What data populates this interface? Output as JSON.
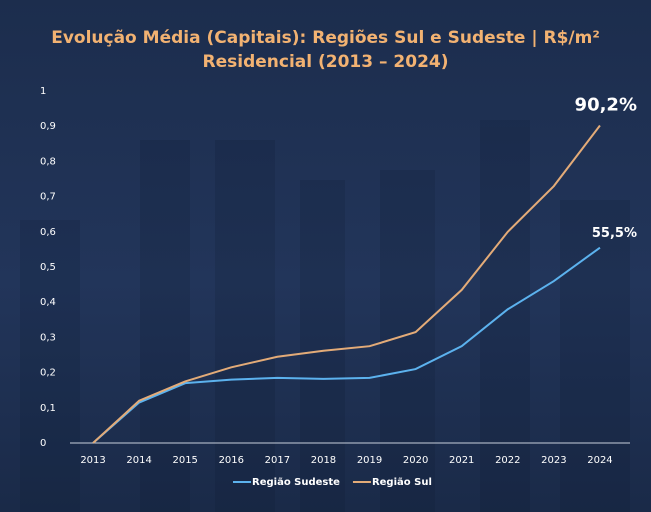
{
  "chart_data": {
    "type": "line",
    "title": "Evolução Média (Capitais): Regiões Sul e Sudeste | R$/m² Residencial (2013 – 2024)",
    "categories": [
      "2013",
      "2014",
      "2015",
      "2016",
      "2017",
      "2018",
      "2019",
      "2020",
      "2021",
      "2022",
      "2023",
      "2024"
    ],
    "series": [
      {
        "name": "Região Sudeste",
        "color": "#5cb2ee",
        "values": [
          0,
          0.115,
          0.17,
          0.18,
          0.185,
          0.182,
          0.185,
          0.21,
          0.275,
          0.38,
          0.46,
          0.555
        ],
        "value_labels": [
          null,
          null,
          null,
          null,
          null,
          null,
          null,
          null,
          null,
          null,
          null,
          "55,5%"
        ]
      },
      {
        "name": "Região Sul",
        "color": "#e3ab78",
        "values": [
          0,
          0.12,
          0.175,
          0.215,
          0.245,
          0.262,
          0.275,
          0.315,
          0.435,
          0.6,
          0.73,
          0.902
        ],
        "value_labels": [
          null,
          null,
          null,
          null,
          null,
          null,
          null,
          null,
          null,
          null,
          null,
          "90,2%"
        ]
      }
    ],
    "ylim": [
      0,
      1
    ],
    "yticks": [
      0,
      {
        "value": 0.1,
        "label": "0,1"
      },
      {
        "value": 0.2,
        "label": "0,2"
      },
      {
        "value": 0.3,
        "label": "0,3"
      },
      {
        "value": 0.4,
        "label": "0,4"
      },
      {
        "value": 0.5,
        "label": "0,5"
      },
      {
        "value": 0.6,
        "label": "0,6"
      },
      {
        "value": 0.7,
        "label": "0,7"
      },
      {
        "value": 0.8,
        "label": "0,8"
      },
      {
        "value": 0.9,
        "label": "0,9"
      },
      1
    ],
    "grid": false,
    "legend": "bottom"
  }
}
